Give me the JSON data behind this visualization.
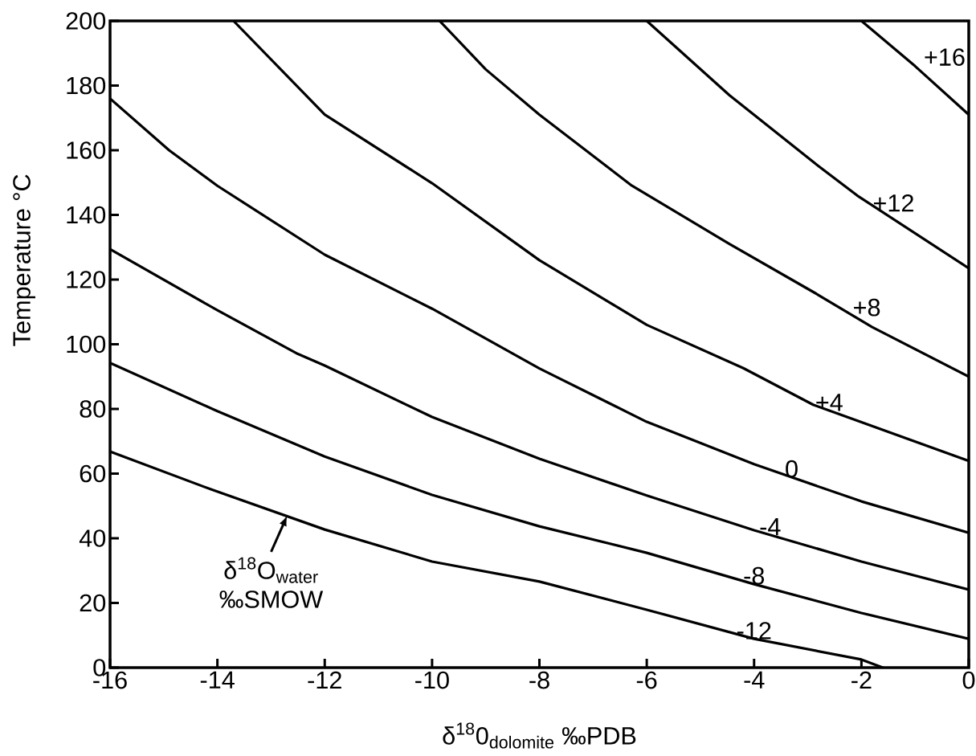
{
  "chart_data": {
    "type": "line",
    "xlabel": "δ$^{18}$0$_{dolomite}$  ‰PDB",
    "ylabel": "Temperature °C",
    "xlim": [
      -16,
      0
    ],
    "ylim": [
      0,
      200
    ],
    "xticks": [
      -16,
      -14,
      -12,
      -10,
      -8,
      -6,
      -4,
      -2,
      0
    ],
    "yticks": [
      0,
      20,
      40,
      60,
      80,
      100,
      120,
      140,
      160,
      180,
      200
    ],
    "line_style": "solid",
    "marker": "none",
    "series": [
      {
        "name": "-12",
        "color": "#000000",
        "x": [
          -16,
          -14.1,
          -12,
          -10,
          -8,
          -6,
          -4,
          -2,
          -1.6
        ],
        "values": [
          66.8,
          55,
          42.7,
          32.8,
          26.6,
          17.9,
          8.9,
          2.5,
          0
        ]
      },
      {
        "name": "-8",
        "color": "#000000",
        "x": [
          -16,
          -14,
          -12,
          -10,
          -8,
          -6,
          -4,
          -2,
          0
        ],
        "values": [
          94.2,
          79.3,
          65.3,
          53.4,
          43.7,
          35.5,
          25.8,
          16.9,
          8.9
        ]
      },
      {
        "name": "-4",
        "color": "#000000",
        "x": [
          -16,
          -14,
          -12.5,
          -12,
          -10,
          -8,
          -6,
          -4,
          -2,
          0
        ],
        "values": [
          129.4,
          110.5,
          97,
          93.4,
          77.5,
          64.6,
          53.2,
          42.5,
          32.8,
          24.1
        ]
      },
      {
        "name": "0",
        "color": "#000000",
        "x": [
          -16,
          -14.9,
          -14,
          -12,
          -10,
          -8,
          -6,
          -4,
          -2,
          0
        ],
        "values": [
          176,
          160,
          149,
          127.7,
          111,
          92.5,
          76,
          62.9,
          51.4,
          41.7
        ]
      },
      {
        "name": "+4",
        "color": "#000000",
        "x": [
          -13.7,
          -12,
          -10,
          -8,
          -6,
          -4.2,
          -2.9,
          0
        ],
        "values": [
          200,
          171,
          149.8,
          126,
          106,
          92.6,
          81.3,
          63.9
        ]
      },
      {
        "name": "+8",
        "color": "#000000",
        "x": [
          -9.86,
          -9,
          -8,
          -6.3,
          -4.46,
          -2.87,
          -1.8,
          0
        ],
        "values": [
          200,
          185,
          171,
          149.3,
          131,
          115.9,
          105.3,
          90
        ]
      },
      {
        "name": "+12",
        "color": "#000000",
        "x": [
          -6,
          -4.46,
          -2.87,
          -2.08,
          0
        ],
        "values": [
          200,
          177,
          156,
          146,
          123.5
        ]
      },
      {
        "name": "+16",
        "color": "#000000",
        "x": [
          -2,
          -1,
          0
        ],
        "values": [
          200,
          186,
          171
        ]
      }
    ],
    "annotations": [
      {
        "text": "δ$^{18}$O$_{water}$ ‰SMOW",
        "x": -12.7,
        "y": 47
      }
    ]
  }
}
